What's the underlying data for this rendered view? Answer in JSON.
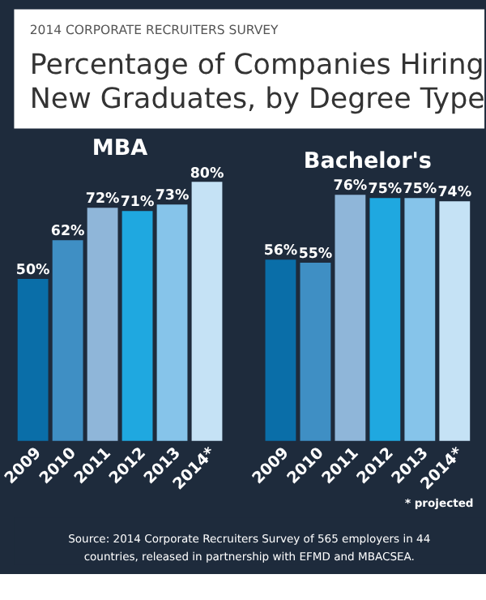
{
  "chart_data": [
    {
      "type": "other",
      "title": "Percentage of Companies Hiring New Graduates, by Degree Type",
      "subtitle": "2014 CORPORATE RECRUITERS SURVEY"
    },
    {
      "type": "bar",
      "title": "MBA",
      "categories": [
        "2009",
        "2010",
        "2011",
        "2012",
        "2013",
        "2014*"
      ],
      "values": [
        50,
        62,
        72,
        71,
        73,
        80
      ],
      "colors": [
        "#0a6ea8",
        "#3f8fc4",
        "#8fb6d9",
        "#1fa8e0",
        "#86c4ea",
        "#c5e2f5"
      ],
      "value_labels": [
        "50%",
        "62%",
        "72%",
        "71%",
        "73%",
        "80%"
      ],
      "tick_labels": "x",
      "grid": false
    },
    {
      "type": "bar",
      "title": "Bachelor's",
      "categories": [
        "2009",
        "2010",
        "2011",
        "2012",
        "2013",
        "2014*"
      ],
      "values": [
        56,
        55,
        76,
        75,
        75,
        74
      ],
      "colors": [
        "#0a6ea8",
        "#3f8fc4",
        "#8fb6d9",
        "#1fa8e0",
        "#86c4ea",
        "#c5e2f5"
      ],
      "value_labels": [
        "56%",
        "55%",
        "76%",
        "75%",
        "75%",
        "74%"
      ],
      "tick_labels": "x",
      "grid": false,
      "annotations": [
        "* projected"
      ]
    },
    {
      "type": "other",
      "annotations": [
        "Source: 2014 Corporate Recruiters Survey of 565 employers in 44 countries, released in partnership with EFMD and MBACSEA."
      ]
    }
  ]
}
